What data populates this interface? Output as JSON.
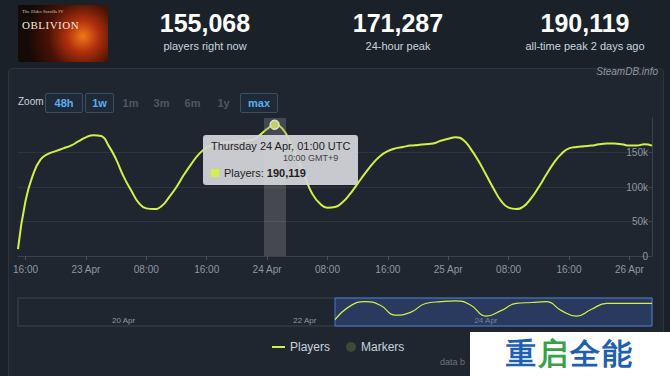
{
  "header": {
    "logo": {
      "subtitle": "The Elder Scrolls IV",
      "title": "OBLIVION"
    },
    "stats": [
      {
        "value": "155,068",
        "label": "players right now"
      },
      {
        "value": "171,287",
        "label": "24-hour peak"
      },
      {
        "value": "190,119",
        "label": "all-time peak 2 days ago"
      }
    ]
  },
  "panel": {
    "credit": "SteamDB.info",
    "zoom": {
      "label": "Zoom",
      "buttons": [
        {
          "text": "48h",
          "active": true
        },
        {
          "text": "1w",
          "active": true
        },
        {
          "text": "1m",
          "active": false
        },
        {
          "text": "3m",
          "active": false
        },
        {
          "text": "6m",
          "active": false
        },
        {
          "text": "1y",
          "active": false
        },
        {
          "text": "max",
          "active": true
        }
      ]
    },
    "tooltip": {
      "title": "Thursday 24 Apr, 01:00 UTC",
      "subtitle": "10:00 GMT+9",
      "label": "Players:",
      "value": 190119,
      "value_label": "190,119"
    },
    "legend_extra": "Markers",
    "footer": "data b"
  },
  "watermark": "重启全能",
  "chart_data": [
    {
      "type": "line",
      "categories": [
        null,
        "16:00",
        null,
        null,
        null,
        null,
        null,
        null,
        null,
        "23 Apr",
        null,
        null,
        null,
        null,
        null,
        null,
        null,
        "08:00",
        null,
        null,
        null,
        null,
        null,
        null,
        null,
        "16:00",
        null,
        null,
        null,
        null,
        null,
        null,
        null,
        "24 Apr",
        null,
        null,
        null,
        null,
        null,
        null,
        null,
        "08:00",
        null,
        null,
        null,
        null,
        null,
        null,
        null,
        "16:00",
        null,
        null,
        null,
        null,
        null,
        null,
        null,
        "25 Apr",
        null,
        null,
        null,
        null,
        null,
        null,
        null,
        "08:00",
        null,
        null,
        null,
        null,
        null,
        null,
        null,
        "16:00",
        null,
        null,
        null,
        null,
        null,
        null,
        null,
        "26 Apr",
        null,
        null,
        null
      ],
      "series": [
        {
          "name": "Players",
          "color": "#d4f046",
          "values": [
            10000,
            80000,
            118000,
            140000,
            148000,
            152000,
            156000,
            160000,
            166000,
            172000,
            175000,
            174000,
            160000,
            140000,
            115000,
            95000,
            77000,
            69000,
            68000,
            72000,
            85000,
            100000,
            118000,
            134000,
            148000,
            157000,
            161000,
            164000,
            165000,
            166000,
            167000,
            168000,
            175000,
            184000,
            190119,
            185000,
            166000,
            142000,
            115000,
            90000,
            76000,
            70000,
            71000,
            78000,
            90000,
            105000,
            120000,
            134000,
            145000,
            152000,
            156000,
            158000,
            160000,
            161000,
            162000,
            163000,
            167000,
            170000,
            172000,
            168000,
            155000,
            138000,
            118000,
            98000,
            80000,
            70000,
            68000,
            72000,
            84000,
            100000,
            118000,
            135000,
            148000,
            156000,
            158000,
            159000,
            160000,
            162000,
            163000,
            163000,
            162000,
            160000,
            160000,
            162000,
            160000
          ]
        }
      ],
      "ylim": [
        0,
        200000
      ],
      "yticks": [
        0,
        {
          "value": 50000,
          "label": "50k"
        },
        {
          "value": 100000,
          "label": "100k"
        },
        {
          "value": 150000,
          "label": "150k"
        }
      ],
      "grid": true
    },
    {
      "type": "line",
      "categories": [
        null,
        null,
        null,
        null,
        null,
        null,
        null,
        "20 Apr",
        null,
        null,
        null,
        null,
        null,
        null,
        null,
        null,
        null,
        null,
        null,
        "22 Apr",
        null,
        null,
        null,
        null,
        null,
        null,
        null,
        null,
        null,
        null,
        null,
        "24 Apr",
        null,
        null,
        null,
        null,
        null,
        null,
        null,
        null,
        null,
        null,
        null
      ],
      "values": [
        null,
        null,
        null,
        null,
        null,
        null,
        null,
        null,
        null,
        null,
        null,
        null,
        null,
        null,
        null,
        null,
        null,
        null,
        null,
        null,
        null,
        45000,
        142000,
        174000,
        148000,
        77000,
        97000,
        161000,
        174000,
        180000,
        148000,
        71000,
        110000,
        161000,
        168000,
        174000,
        110000,
        71000,
        120000,
        161000,
        161000,
        161000,
        161000
      ],
      "color": "#d4f046",
      "ylim": [
        0,
        200000
      ],
      "tick_labels": "x",
      "grid": false
    }
  ]
}
